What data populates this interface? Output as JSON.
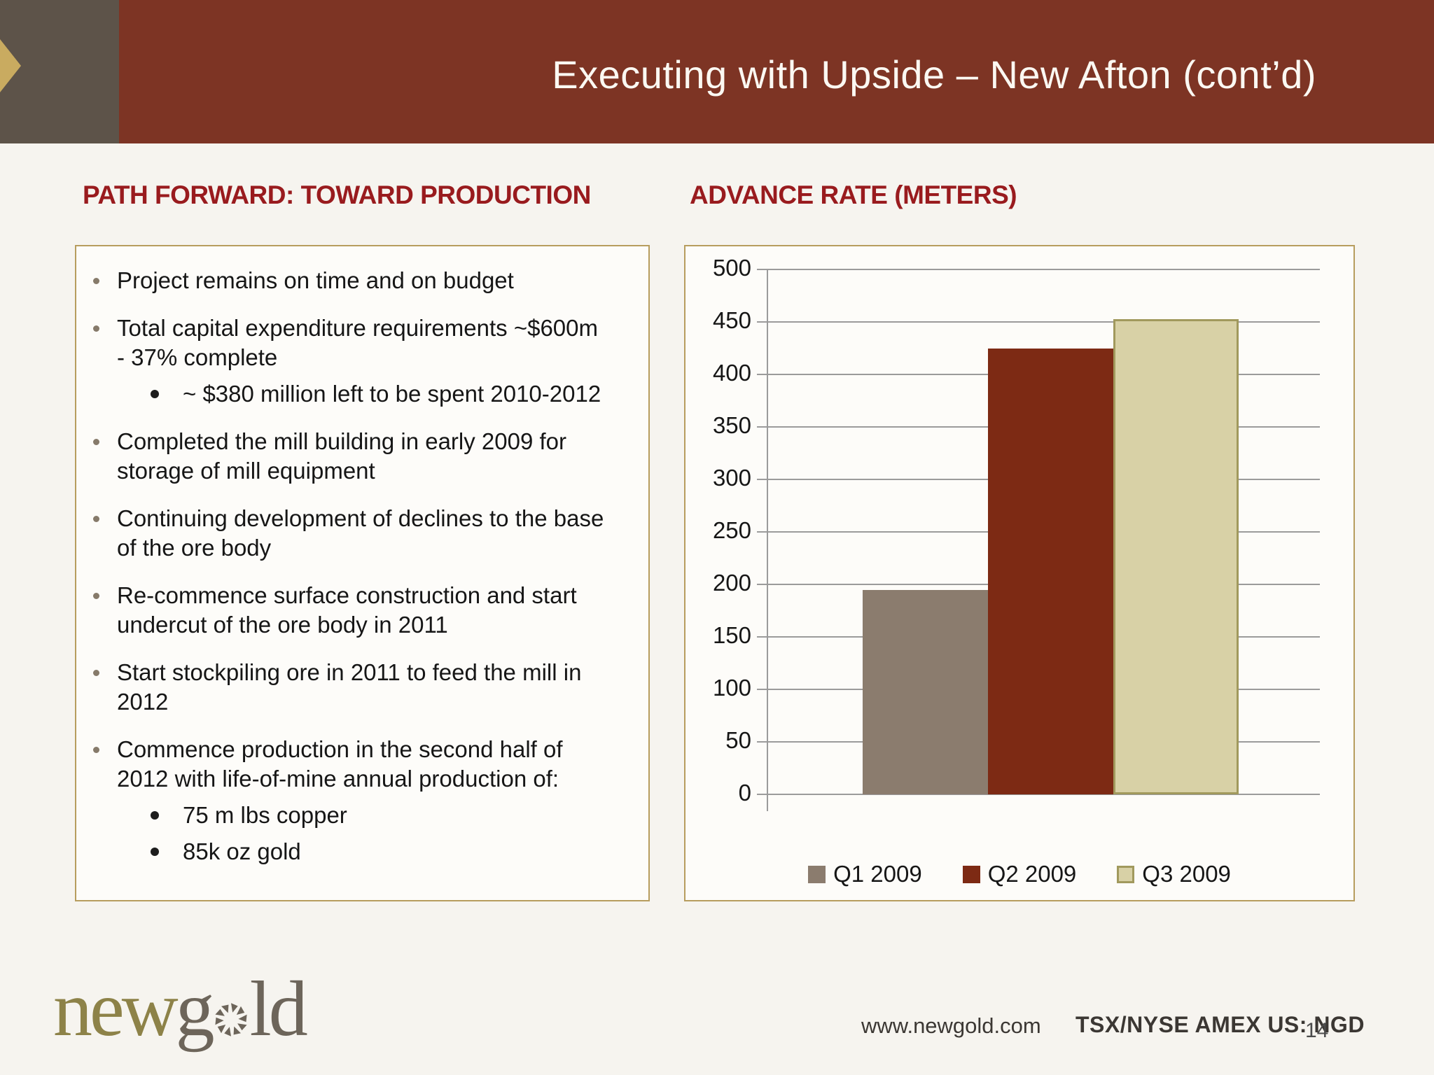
{
  "slide": {
    "title": "Executing with Upside – New Afton (cont’d)",
    "page_number": "14"
  },
  "left_panel": {
    "heading": "PATH FORWARD: TOWARD PRODUCTION",
    "bullets": [
      {
        "level": 1,
        "text": "Project remains on time and on budget"
      },
      {
        "level": 1,
        "text": "Total capital expenditure requirements ~$600m\n- 37% complete"
      },
      {
        "level": 2,
        "text": "~ $380 million left to be spent 2010-2012"
      },
      {
        "level": 1,
        "text": "Completed the mill building in early 2009 for\nstorage of mill equipment"
      },
      {
        "level": 1,
        "text": "Continuing development of declines to the base\nof the ore body"
      },
      {
        "level": 1,
        "text": "Re-commence surface construction and start\nundercut of the ore body in 2011"
      },
      {
        "level": 1,
        "text": "Start stockpiling ore in 2011 to feed the mill in\n2012"
      },
      {
        "level": 1,
        "text": "Commence production in the second half of\n2012 with life-of-mine annual production of:"
      },
      {
        "level": 2,
        "text": "75 m lbs copper"
      },
      {
        "level": 2,
        "text": "85k oz gold"
      }
    ]
  },
  "right_panel": {
    "heading": "ADVANCE RATE (METERS)"
  },
  "chart_data": {
    "type": "bar",
    "title": "ADVANCE RATE (METERS)",
    "categories": [
      "Q1 2009",
      "Q2 2009",
      "Q3 2009"
    ],
    "values": [
      195,
      425,
      453
    ],
    "colors": [
      "#8b7c6e",
      "#7d2a14",
      "#d8d1a6"
    ],
    "bar_borders": [
      null,
      null,
      "#a1995d"
    ],
    "xlabel": "",
    "ylabel": "",
    "units": "meters",
    "ylim": [
      0,
      500
    ],
    "ytick_interval": 50,
    "grid": true,
    "legend": [
      "Q1 2009",
      "Q2 2009",
      "Q3 2009"
    ],
    "legend_position": "bottom"
  },
  "footer": {
    "brand_full": "newgold",
    "brand_new": "new",
    "brand_g": "g",
    "brand_ld": "ld",
    "website": "www.newgold.com",
    "ticker": "TSX/NYSE AMEX US: NGD"
  },
  "colors": {
    "header_band": "#7d3424",
    "corner_block": "#5d5349",
    "chevron_gold": "#c9ab60",
    "heading_red": "#991b1e",
    "panel_border_tan": "#b79d5e",
    "gridline_gray": "#9b9b9b",
    "bar_q1": "#8b7c6e",
    "bar_q2": "#7d2a14",
    "bar_q3_fill": "#d8d1a6",
    "bar_q3_border": "#a1995d",
    "logo_olive": "#8d8248",
    "logo_gray": "#6d655a"
  }
}
